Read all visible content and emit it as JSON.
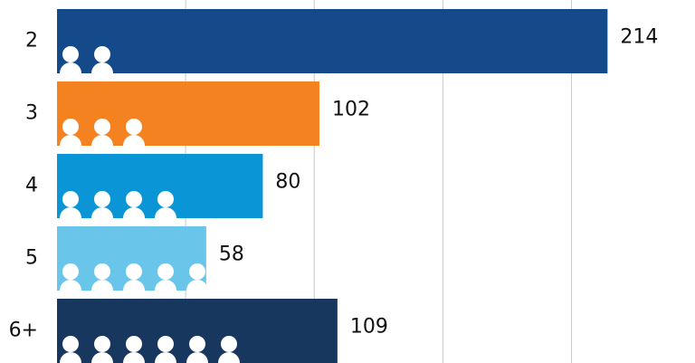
{
  "chart_data": {
    "type": "bar",
    "orientation": "horizontal",
    "categories": [
      "2",
      "3",
      "4",
      "5",
      "6+"
    ],
    "values": [
      214,
      102,
      80,
      58,
      109
    ],
    "colors": [
      "#154a8a",
      "#f58220",
      "#0a96d6",
      "#6ac5ea",
      "#17375e"
    ],
    "xlim": [
      0,
      248
    ],
    "xticks": [
      0,
      50,
      100,
      150,
      200
    ],
    "grid": true
  }
}
